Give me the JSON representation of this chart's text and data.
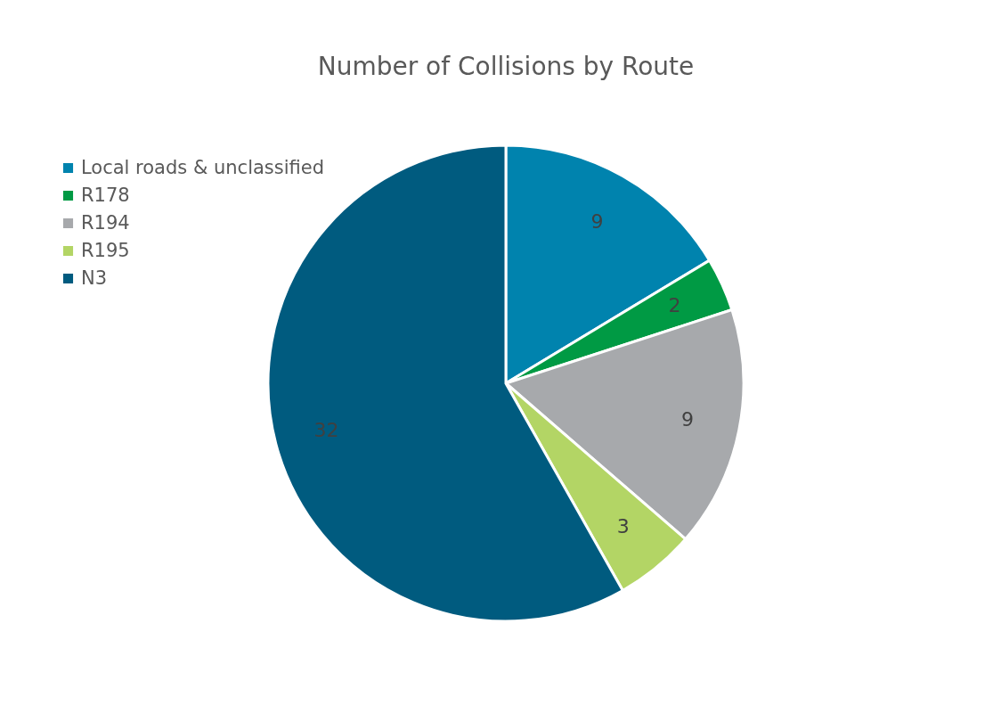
{
  "chart_data": {
    "type": "pie",
    "title": "Number of Collisions by Route",
    "categories": [
      "Local roads & unclassified",
      "R178",
      "R194",
      "R195",
      "N3"
    ],
    "values": [
      9,
      2,
      9,
      3,
      32
    ],
    "colors": [
      "#0083ae",
      "#009a44",
      "#a7a9ac",
      "#b3d565",
      "#005b7f"
    ],
    "data_labels": true,
    "legend": "top left"
  }
}
